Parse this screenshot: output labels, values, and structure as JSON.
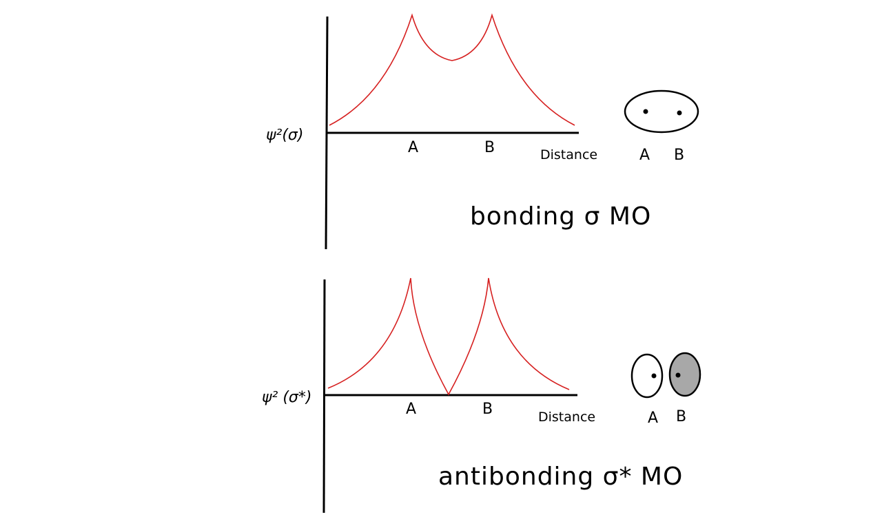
{
  "panels": [
    {
      "y_label": "ψ²(σ)",
      "x_labels": [
        "A",
        "B"
      ],
      "x_axis_label": "Distance",
      "orbital_labels": [
        "A",
        "B"
      ],
      "title": "bonding σ MO",
      "node_fill": [
        "none"
      ],
      "curve_color": "#d62020"
    },
    {
      "y_label": "ψ² (σ*)",
      "x_labels": [
        "A",
        "B"
      ],
      "x_axis_label": "Distance",
      "orbital_labels": [
        "A",
        "B"
      ],
      "title": "antibonding σ* MO",
      "node_fill": [
        "#ffffff",
        "#a8a8a8"
      ],
      "curve_color": "#d62020"
    }
  ]
}
